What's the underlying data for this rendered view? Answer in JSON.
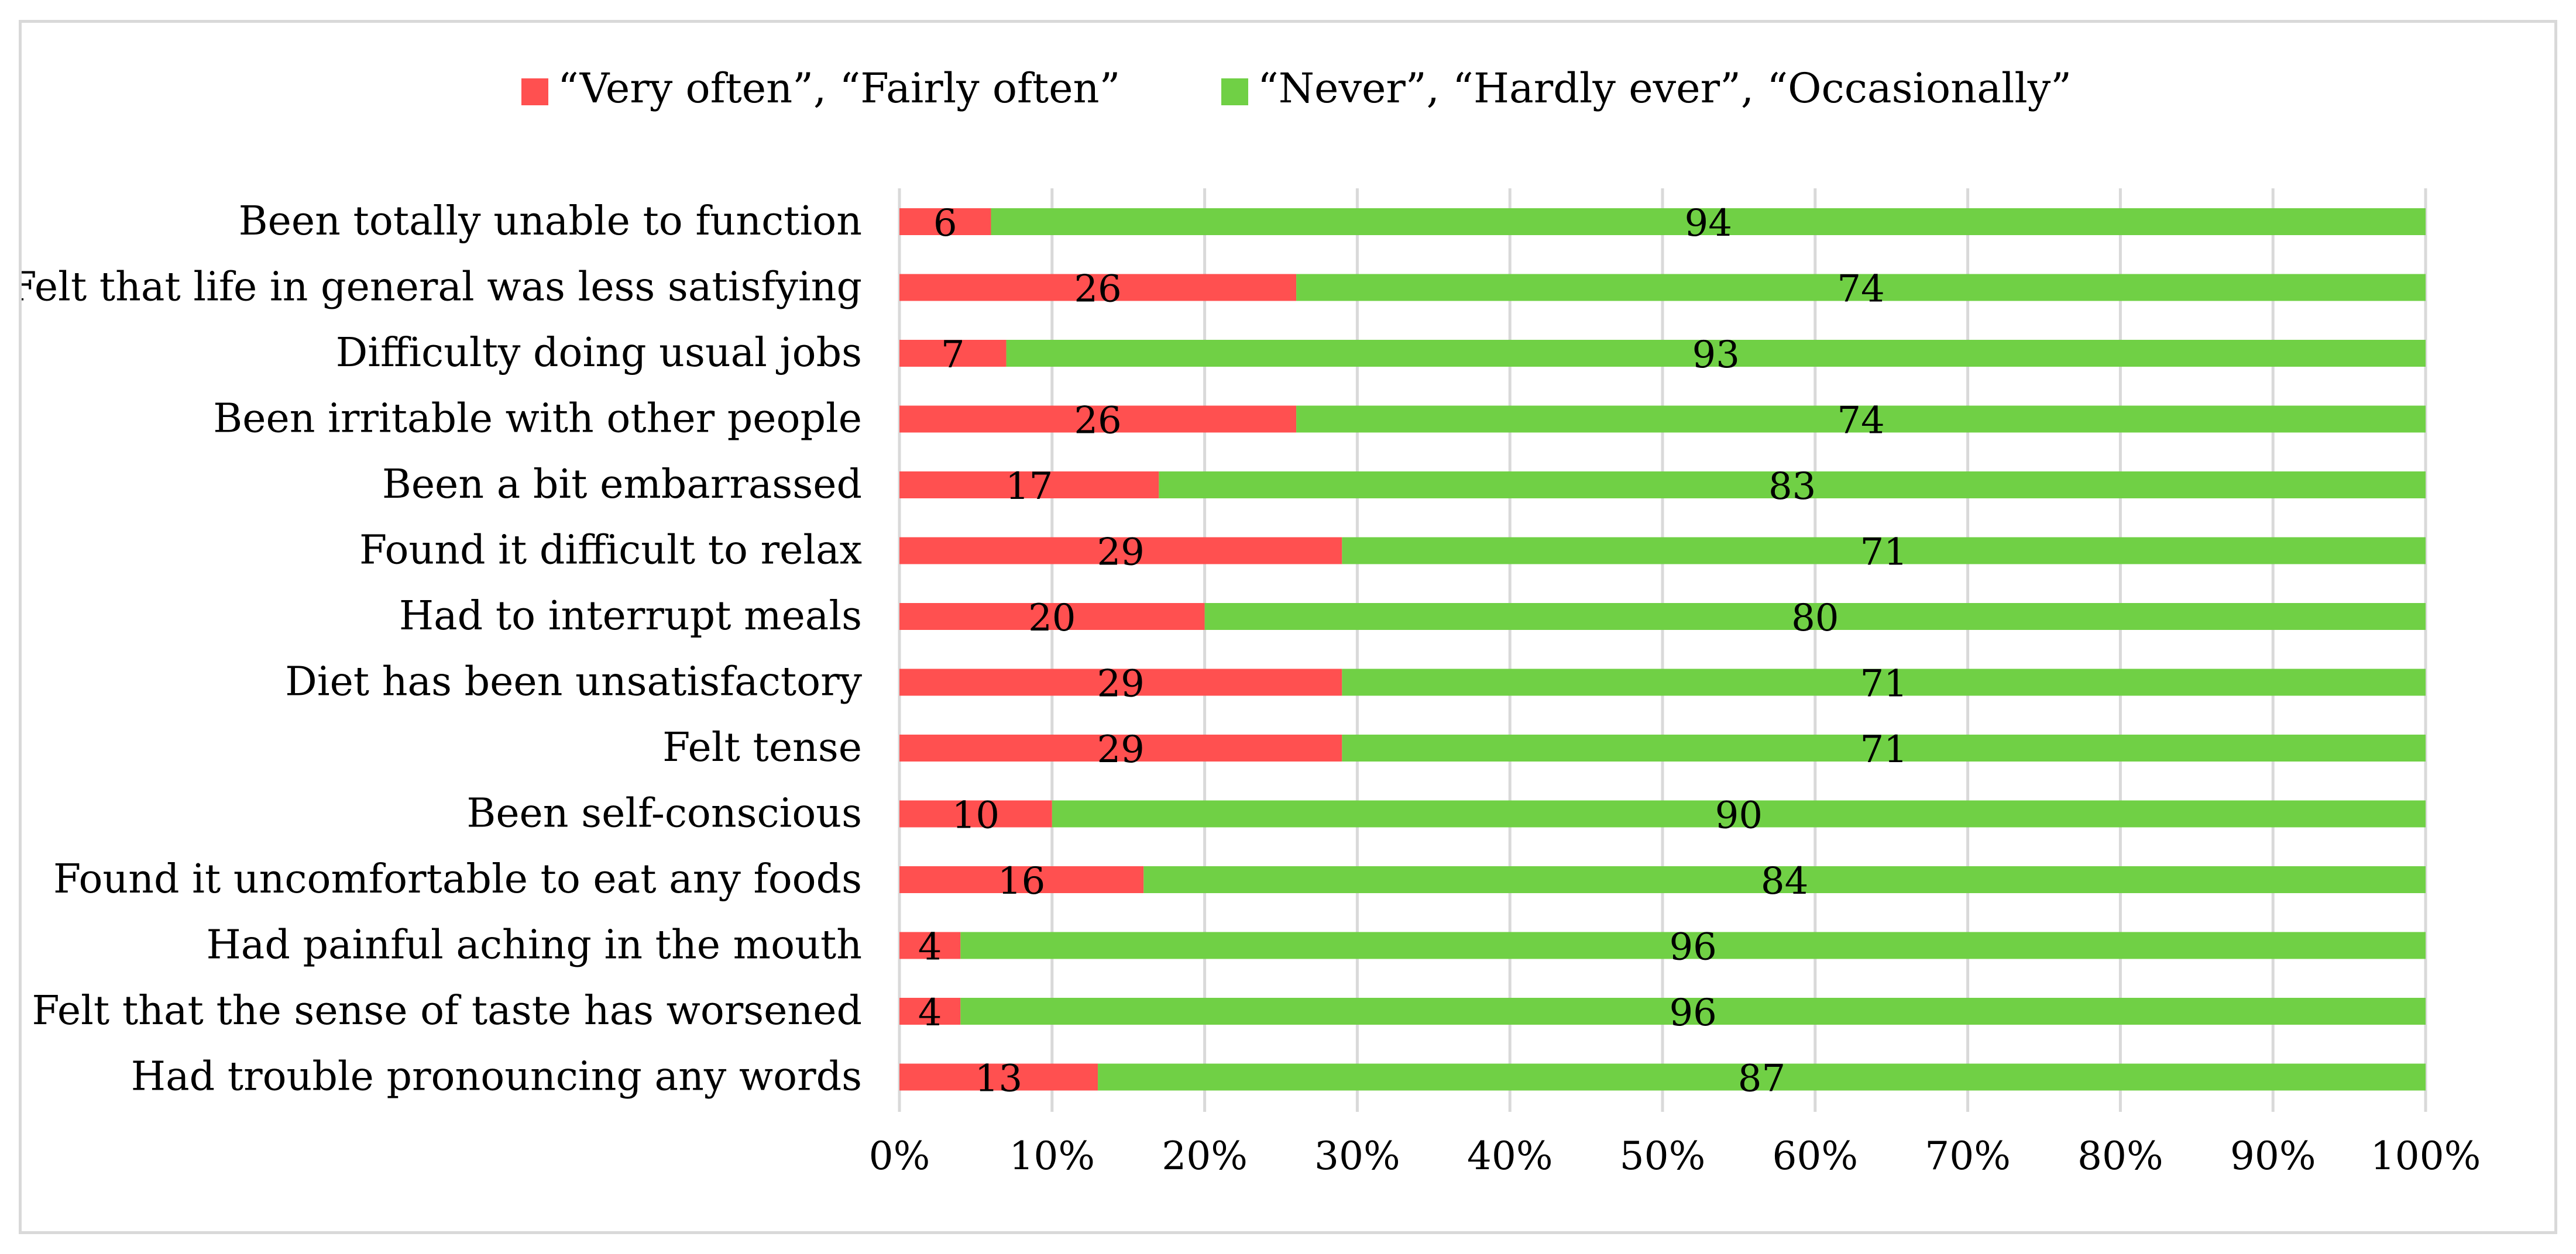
{
  "chart_data": {
    "type": "bar",
    "orientation": "horizontal",
    "stacked": true,
    "percent_stacked": true,
    "categories": [
      "Been totally unable to function",
      "Felt that life in general was less satisfying",
      "Difficulty doing usual jobs",
      "Been irritable with other people",
      "Been a bit embarrassed",
      "Found it difficult to relax",
      "Had to interrupt meals",
      "Diet has been unsatisfactory",
      "Felt tense",
      "Been self-conscious",
      "Found it uncomfortable to eat any foods",
      "Had painful aching in the mouth",
      "Felt that the sense of taste has worsened",
      "Had trouble pronouncing any words"
    ],
    "series": [
      {
        "name": "“Very often”, “Fairly often”",
        "color": "#ff5050",
        "values": [
          6,
          26,
          7,
          26,
          17,
          29,
          20,
          29,
          29,
          10,
          16,
          4,
          4,
          13
        ]
      },
      {
        "name": "“Never”, “Hardly ever”, “Occasionally”",
        "color": "#70d045",
        "values": [
          94,
          74,
          93,
          74,
          83,
          71,
          80,
          71,
          71,
          90,
          84,
          96,
          96,
          87
        ]
      }
    ],
    "x_ticks": [
      "0%",
      "10%",
      "20%",
      "30%",
      "40%",
      "50%",
      "60%",
      "70%",
      "80%",
      "90%",
      "100%"
    ],
    "xlim": [
      0,
      100
    ],
    "data_labels": true,
    "gridlines": "vertical",
    "legend_position": "top"
  }
}
